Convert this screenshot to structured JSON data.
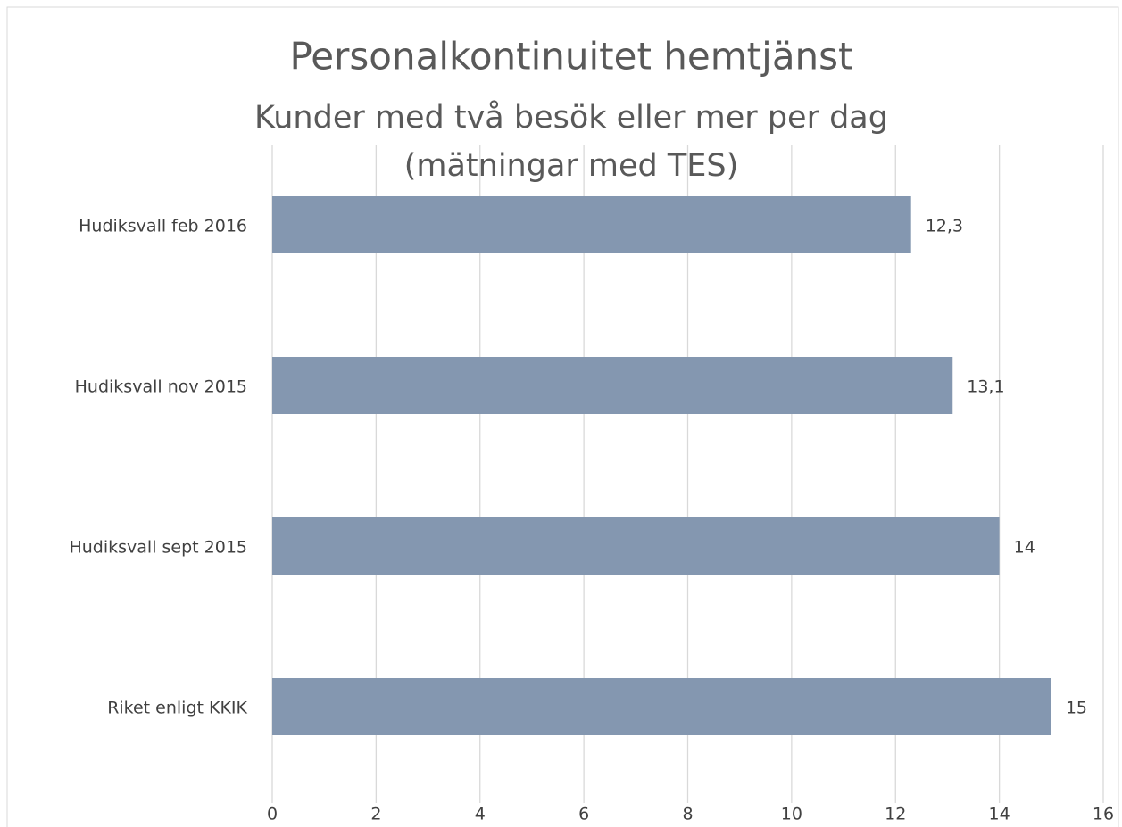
{
  "chart_data": {
    "type": "bar",
    "orientation": "horizontal",
    "title": "Personalkontinuitet hemtjänst",
    "subtitle": [
      "Kunder med två besök eller mer per dag",
      "(mätningar med TES)"
    ],
    "categories": [
      "Hudiksvall feb 2016",
      "Hudiksvall nov 2015",
      "Hudiksvall sept 2015",
      "Riket enligt KKIK"
    ],
    "values": [
      12.3,
      13.1,
      14,
      15
    ],
    "value_labels": [
      "12,3",
      "13,1",
      "14",
      "15"
    ],
    "color": "#8497b0",
    "xlim": [
      0,
      16
    ],
    "xticks": [
      0,
      2,
      4,
      6,
      8,
      10,
      12,
      14,
      16
    ],
    "grid": true
  }
}
